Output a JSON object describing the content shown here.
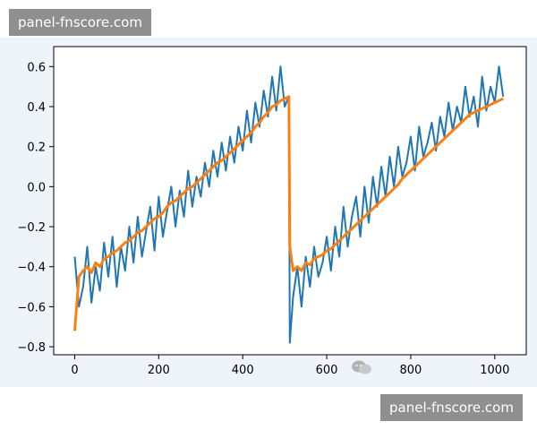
{
  "watermarks": {
    "top": "panel-fnscore.com",
    "bottom": "panel-fnscore.com"
  },
  "icons": {
    "chat": "wechat-chat-icon"
  },
  "colors": {
    "background": "#eef4fa",
    "noisy_series": "#1f77b4",
    "smooth_series": "#ff7f0e",
    "watermark_bg": "#8f8f8f"
  },
  "chart_data": {
    "type": "line",
    "title": "",
    "xlabel": "",
    "ylabel": "",
    "xlim": [
      -50,
      1075
    ],
    "ylim": [
      -0.84,
      0.7
    ],
    "xticks": [
      0,
      200,
      400,
      600,
      800,
      1000
    ],
    "yticks": [
      -0.8,
      -0.6,
      -0.4,
      -0.2,
      0.0,
      0.2,
      0.4,
      0.6
    ],
    "xtick_labels": [
      "0",
      "200",
      "400",
      "600",
      "800",
      "1000"
    ],
    "ytick_labels": [
      "−0.8",
      "−0.6",
      "−0.4",
      "−0.2",
      "0.0",
      "0.2",
      "0.4",
      "0.6"
    ],
    "grid": false,
    "legend": "none",
    "series": [
      {
        "color": "#1f77b4",
        "x": [
          0,
          10,
          20,
          30,
          40,
          50,
          60,
          70,
          80,
          90,
          100,
          110,
          120,
          130,
          140,
          150,
          160,
          170,
          180,
          190,
          200,
          210,
          220,
          230,
          240,
          250,
          260,
          270,
          280,
          290,
          300,
          310,
          320,
          330,
          340,
          350,
          360,
          370,
          380,
          390,
          400,
          410,
          420,
          430,
          440,
          450,
          460,
          470,
          480,
          490,
          500,
          510,
          512,
          520,
          530,
          540,
          550,
          560,
          570,
          580,
          590,
          600,
          610,
          620,
          630,
          640,
          650,
          660,
          670,
          680,
          690,
          700,
          710,
          720,
          730,
          740,
          750,
          760,
          770,
          780,
          790,
          800,
          810,
          820,
          830,
          840,
          850,
          860,
          870,
          880,
          890,
          900,
          910,
          920,
          930,
          940,
          950,
          960,
          970,
          980,
          990,
          1000,
          1010,
          1020
        ],
        "y": [
          -0.35,
          -0.6,
          -0.5,
          -0.3,
          -0.58,
          -0.4,
          -0.52,
          -0.28,
          -0.45,
          -0.25,
          -0.5,
          -0.3,
          -0.42,
          -0.2,
          -0.38,
          -0.15,
          -0.35,
          -0.22,
          -0.1,
          -0.32,
          -0.05,
          -0.25,
          -0.12,
          0.0,
          -0.2,
          -0.02,
          -0.15,
          0.08,
          -0.1,
          0.05,
          -0.05,
          0.12,
          0.0,
          0.18,
          0.05,
          0.22,
          0.08,
          0.25,
          0.12,
          0.3,
          0.18,
          0.38,
          0.22,
          0.42,
          0.3,
          0.48,
          0.35,
          0.55,
          0.38,
          0.6,
          0.4,
          0.45,
          -0.78,
          -0.55,
          -0.4,
          -0.6,
          -0.35,
          -0.5,
          -0.3,
          -0.45,
          -0.38,
          -0.25,
          -0.42,
          -0.2,
          -0.35,
          -0.1,
          -0.3,
          -0.15,
          -0.05,
          -0.25,
          0.0,
          -0.18,
          0.05,
          -0.1,
          0.1,
          -0.05,
          0.15,
          0.0,
          0.2,
          0.05,
          0.12,
          0.25,
          0.08,
          0.3,
          0.15,
          0.22,
          0.32,
          0.18,
          0.35,
          0.25,
          0.42,
          0.28,
          0.4,
          0.32,
          0.5,
          0.35,
          0.45,
          0.3,
          0.55,
          0.38,
          0.5,
          0.42,
          0.6,
          0.45
        ]
      },
      {
        "color": "#ff7f0e",
        "x": [
          0,
          10,
          20,
          30,
          40,
          50,
          60,
          70,
          80,
          90,
          100,
          110,
          120,
          130,
          140,
          150,
          160,
          170,
          180,
          190,
          200,
          210,
          220,
          230,
          240,
          250,
          260,
          270,
          280,
          290,
          300,
          310,
          320,
          330,
          340,
          350,
          360,
          370,
          380,
          390,
          400,
          410,
          420,
          430,
          440,
          450,
          460,
          470,
          480,
          490,
          500,
          510,
          512,
          520,
          530,
          540,
          550,
          560,
          570,
          580,
          590,
          600,
          610,
          620,
          630,
          640,
          650,
          660,
          670,
          680,
          690,
          700,
          710,
          720,
          730,
          740,
          750,
          760,
          770,
          780,
          790,
          800,
          810,
          820,
          830,
          840,
          850,
          860,
          870,
          880,
          890,
          900,
          910,
          920,
          930,
          940,
          950,
          960,
          970,
          980,
          990,
          1000,
          1010,
          1020
        ],
        "y": [
          -0.72,
          -0.45,
          -0.42,
          -0.4,
          -0.43,
          -0.38,
          -0.4,
          -0.36,
          -0.35,
          -0.33,
          -0.32,
          -0.3,
          -0.28,
          -0.27,
          -0.25,
          -0.23,
          -0.22,
          -0.2,
          -0.18,
          -0.16,
          -0.15,
          -0.13,
          -0.1,
          -0.08,
          -0.07,
          -0.05,
          -0.03,
          -0.01,
          0.0,
          0.02,
          0.04,
          0.06,
          0.08,
          0.1,
          0.12,
          0.13,
          0.15,
          0.17,
          0.19,
          0.21,
          0.23,
          0.25,
          0.27,
          0.3,
          0.32,
          0.35,
          0.37,
          0.4,
          0.41,
          0.43,
          0.44,
          0.45,
          -0.3,
          -0.42,
          -0.4,
          -0.42,
          -0.38,
          -0.39,
          -0.36,
          -0.35,
          -0.34,
          -0.32,
          -0.31,
          -0.29,
          -0.27,
          -0.25,
          -0.23,
          -0.21,
          -0.19,
          -0.17,
          -0.15,
          -0.13,
          -0.11,
          -0.09,
          -0.07,
          -0.05,
          -0.03,
          -0.01,
          0.01,
          0.04,
          0.06,
          0.08,
          0.1,
          0.12,
          0.14,
          0.16,
          0.18,
          0.2,
          0.22,
          0.24,
          0.26,
          0.28,
          0.3,
          0.32,
          0.34,
          0.36,
          0.37,
          0.38,
          0.39,
          0.4,
          0.41,
          0.42,
          0.43,
          0.44
        ]
      }
    ]
  }
}
